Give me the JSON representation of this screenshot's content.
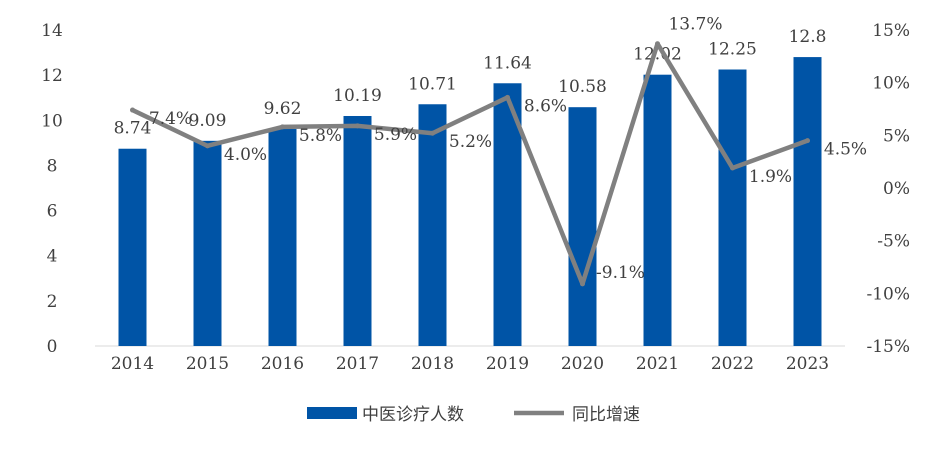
{
  "chart_data": {
    "type": "bar",
    "categories": [
      "2014",
      "2015",
      "2016",
      "2017",
      "2018",
      "2019",
      "2020",
      "2021",
      "2022",
      "2023"
    ],
    "series": [
      {
        "name": "中医诊疗人数",
        "type": "bar",
        "axis": "left",
        "values": [
          8.74,
          9.09,
          9.62,
          10.19,
          10.71,
          11.64,
          10.58,
          12.02,
          12.25,
          12.8
        ],
        "labels": [
          "8.74",
          "9.09",
          "9.62",
          "10.19",
          "10.71",
          "11.64",
          "10.58",
          "12.02",
          "12.25",
          "12.8"
        ],
        "color": "#0054A6"
      },
      {
        "name": "同比增速",
        "type": "line",
        "axis": "right",
        "values": [
          7.4,
          4.0,
          5.8,
          5.9,
          5.2,
          8.6,
          -9.1,
          13.7,
          1.9,
          4.5
        ],
        "labels": [
          "7.4%",
          "4.0%",
          "5.8%",
          "5.9%",
          "5.2%",
          "8.6%",
          "-9.1%",
          "13.7%",
          "1.9%",
          "4.5%"
        ],
        "color": "#808080"
      }
    ],
    "y_left": {
      "ylim": [
        0,
        14
      ],
      "ticks": [
        "0",
        "2",
        "4",
        "6",
        "8",
        "10",
        "12",
        "14"
      ]
    },
    "y_right": {
      "ylim": [
        -15,
        15
      ],
      "ticks": [
        "-15%",
        "-10%",
        "-5%",
        "0%",
        "5%",
        "10%",
        "15%"
      ]
    },
    "legend_position": "bottom",
    "grid": false
  }
}
